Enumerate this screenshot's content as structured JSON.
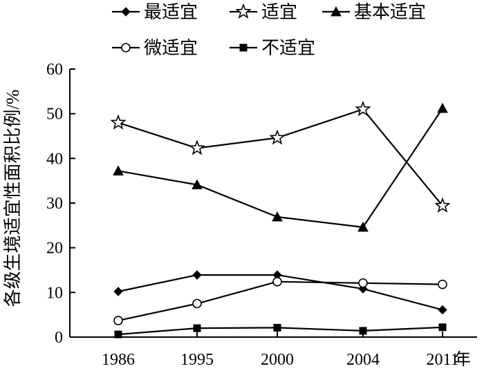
{
  "chart_data": {
    "type": "line",
    "categories": [
      "1986",
      "1995",
      "2000",
      "2004",
      "2011"
    ],
    "x_unit_suffix": "年",
    "ylabel": "各级生境适宜性面积比例/%",
    "xlabel": "",
    "ylim": [
      0,
      60
    ],
    "yticks": [
      0,
      10,
      20,
      30,
      40,
      50,
      60
    ],
    "grid": false,
    "legend_position": "top",
    "series": [
      {
        "name": "最适宜",
        "marker": "diamond-filled",
        "values": [
          10.2,
          13.9,
          13.9,
          10.8,
          6.1
        ]
      },
      {
        "name": "适宜",
        "marker": "star-open",
        "values": [
          48.0,
          42.3,
          44.6,
          51.0,
          29.4
        ]
      },
      {
        "name": "基本适宜",
        "marker": "triangle-filled",
        "values": [
          37.2,
          34.1,
          26.9,
          24.6,
          51.2
        ]
      },
      {
        "name": "微适宜",
        "marker": "circle-open",
        "values": [
          3.7,
          7.5,
          12.4,
          12.1,
          11.8
        ]
      },
      {
        "name": "不适宜",
        "marker": "square-filled",
        "values": [
          0.6,
          2.0,
          2.1,
          1.4,
          2.2
        ]
      }
    ]
  }
}
